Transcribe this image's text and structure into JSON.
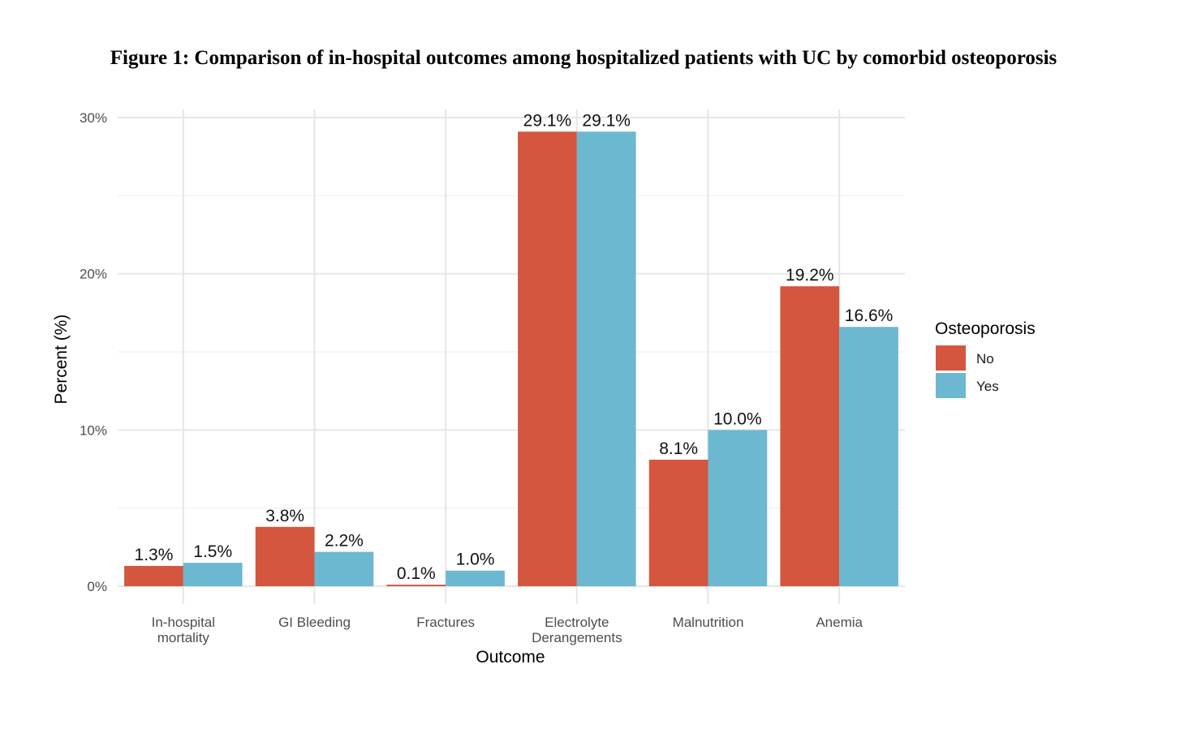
{
  "title": "Figure 1: Comparison of in-hospital outcomes among hospitalized patients with UC by comorbid osteoporosis",
  "chart_data": {
    "type": "bar",
    "xlabel": "Outcome",
    "ylabel": "Percent (%)",
    "categories": [
      [
        "In-hospital",
        "mortality"
      ],
      [
        "GI Bleeding"
      ],
      [
        "Fractures"
      ],
      [
        "Electrolyte",
        "Derangements"
      ],
      [
        "Malnutrition"
      ],
      [
        "Anemia"
      ]
    ],
    "series": [
      {
        "name": "No",
        "color": "#D4563F",
        "values": [
          1.3,
          3.8,
          0.1,
          29.1,
          8.1,
          19.2
        ],
        "labels": [
          "1.3%",
          "3.8%",
          "0.1%",
          "29.1%",
          "8.1%",
          "19.2%"
        ]
      },
      {
        "name": "Yes",
        "color": "#6CB8D0",
        "values": [
          1.5,
          2.2,
          1.0,
          29.1,
          10.0,
          16.6
        ],
        "labels": [
          "1.5%",
          "2.2%",
          "1.0%",
          "29.1%",
          "10.0%",
          "16.6%"
        ]
      }
    ],
    "ylim": [
      0,
      30
    ],
    "yticks": [
      0,
      10,
      20,
      30
    ],
    "ytick_labels": [
      "0%",
      "10%",
      "20%",
      "30%"
    ],
    "legend": {
      "title": "Osteoporosis",
      "position": "right"
    },
    "grid": true
  }
}
